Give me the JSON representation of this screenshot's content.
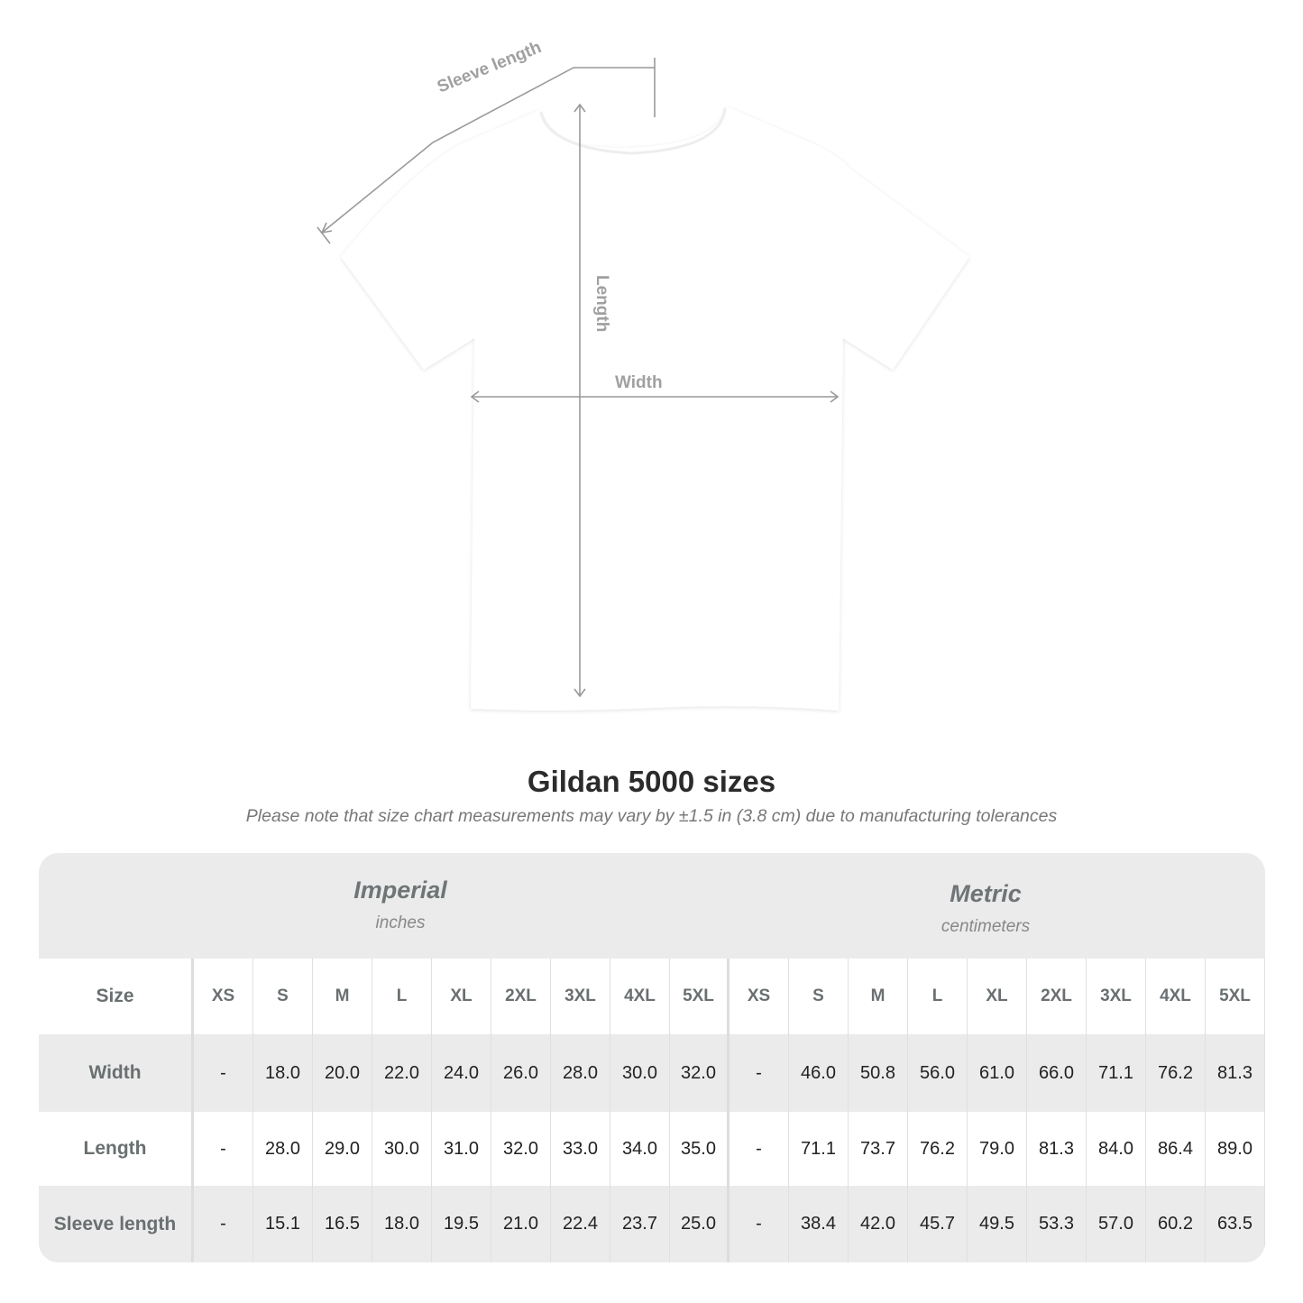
{
  "diagram": {
    "sleeve_label": "Sleeve length",
    "length_label": "Length",
    "width_label": "Width"
  },
  "title": "Gildan 5000 sizes",
  "note": "Please note that size chart measurements may vary by ±1.5 in (3.8 cm) due to manufacturing tolerances",
  "systems": [
    {
      "name": "Imperial",
      "unit": "inches"
    },
    {
      "name": "Metric",
      "unit": "centimeters"
    }
  ],
  "size_label": "Size",
  "sizes": [
    "XS",
    "S",
    "M",
    "L",
    "XL",
    "2XL",
    "3XL",
    "4XL",
    "5XL",
    "XS",
    "S",
    "M",
    "L",
    "XL",
    "2XL",
    "3XL",
    "4XL",
    "5XL"
  ],
  "rows": [
    {
      "label": "Width",
      "values": [
        "-",
        "18.0",
        "20.0",
        "22.0",
        "24.0",
        "26.0",
        "28.0",
        "30.0",
        "32.0",
        "-",
        "46.0",
        "50.8",
        "56.0",
        "61.0",
        "66.0",
        "71.1",
        "76.2",
        "81.3"
      ]
    },
    {
      "label": "Length",
      "values": [
        "-",
        "28.0",
        "29.0",
        "30.0",
        "31.0",
        "32.0",
        "33.0",
        "34.0",
        "35.0",
        "-",
        "71.1",
        "73.7",
        "76.2",
        "79.0",
        "81.3",
        "84.0",
        "86.4",
        "89.0"
      ]
    },
    {
      "label": "Sleeve length",
      "values": [
        "-",
        "15.1",
        "16.5",
        "18.0",
        "19.5",
        "21.0",
        "22.4",
        "23.7",
        "25.0",
        "-",
        "38.4",
        "42.0",
        "45.7",
        "49.5",
        "53.3",
        "57.0",
        "60.2",
        "63.5"
      ]
    }
  ],
  "colors": {
    "band": "#ebebeb",
    "label": "#6a6f71",
    "measure_line": "#999999"
  }
}
